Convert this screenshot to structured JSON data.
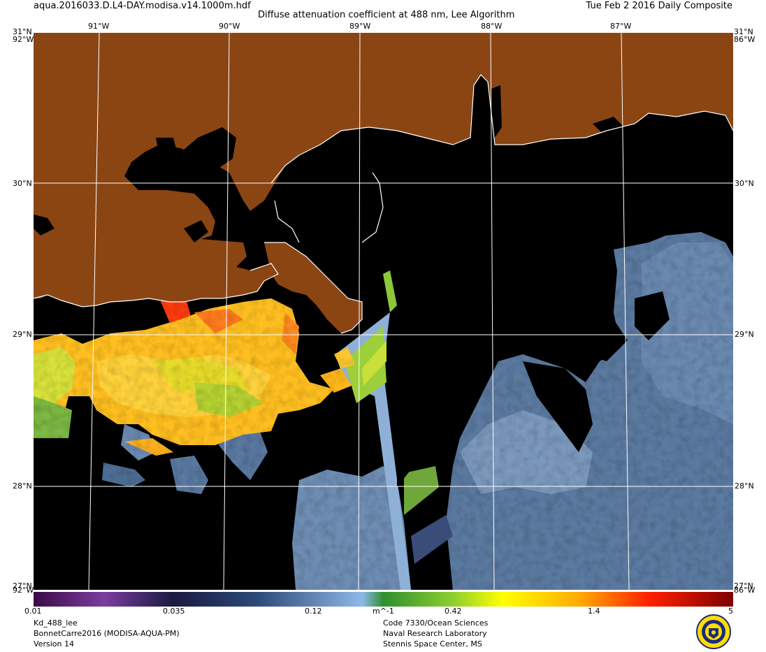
{
  "header": {
    "filename": "aqua.2016033.D.L4-DAY.modisa.v14.1000m.hdf",
    "title": "Diffuse attenuation coefficient at 488 nm, Lee Algorithm",
    "date": "Tue Feb  2 2016 Daily Composite"
  },
  "map": {
    "lon_labels": [
      "91°W",
      "90°W",
      "89°W",
      "88°W",
      "87°W"
    ],
    "lat_labels": [
      "30°N",
      "29°N",
      "28°N"
    ],
    "corner_labels": {
      "top_left": "31°N",
      "top_right": "31°N",
      "top_left_lon": "92°W",
      "top_right_lon": "86°W",
      "bottom_left": "27°N",
      "bottom_right": "27°N",
      "bottom_left_lon": "92°W",
      "bottom_right_lon": "86°W"
    },
    "colors": {
      "land": "#8B4513",
      "no_data": "#000000",
      "coastline": "#ffffff",
      "grid": "#ffffff"
    }
  },
  "colorbar": {
    "tick_labels": [
      "0.01",
      "0.035",
      "0.12",
      "0.42",
      "1.4",
      "5"
    ],
    "unit": "m^-1",
    "range": [
      0.01,
      5
    ],
    "scale": "log"
  },
  "footer": {
    "product": "Kd_488_lee",
    "source": "BonnetCarre2016 (MODISA-AQUA-PM)",
    "version": "Version 14",
    "org_line1": "Code 7330/Ocean Sciences",
    "org_line2": "Naval Research Laboratory",
    "org_line3": "Stennis Space Center, MS"
  },
  "logo": {
    "icon": "navy-seal-icon"
  }
}
